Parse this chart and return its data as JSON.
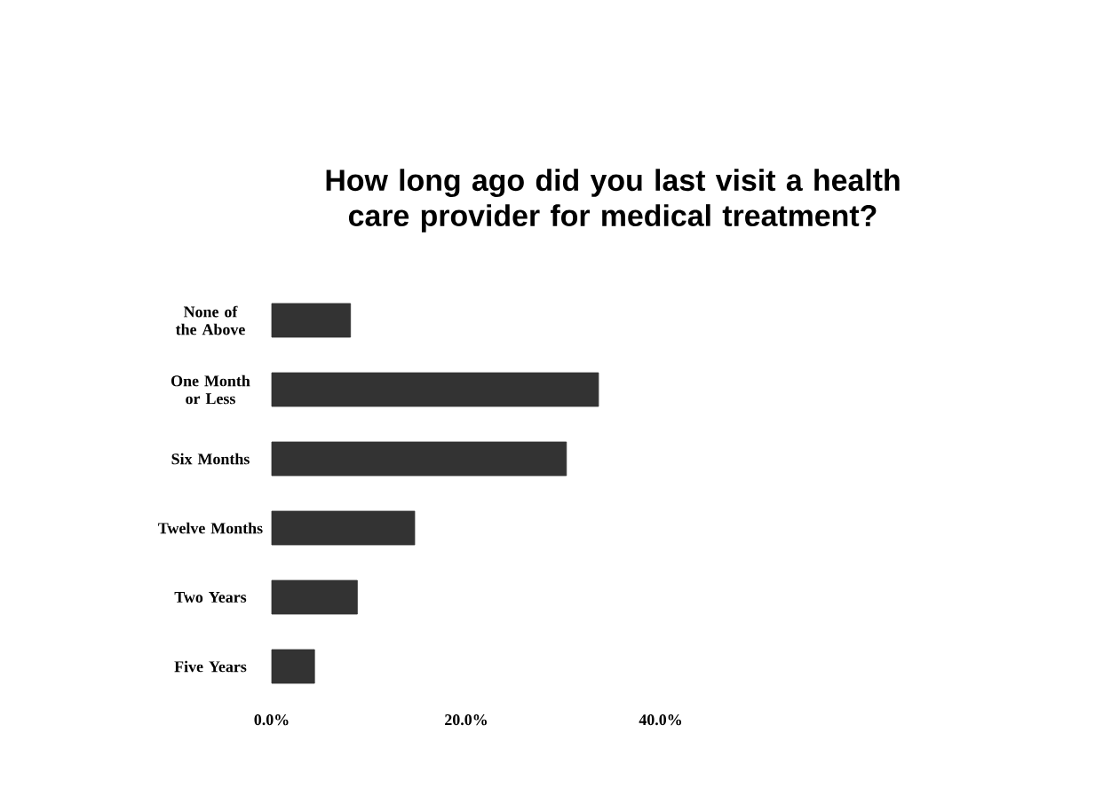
{
  "chart_data": {
    "type": "bar",
    "orientation": "horizontal",
    "title": "How long ago did you last visit a health care provider for medical treatment?",
    "categories": [
      "None of the Above",
      "One Month or Less",
      "Six Months",
      "Twelve Months",
      "Two Years",
      "Five Years"
    ],
    "values": [
      8.1,
      33.6,
      30.3,
      14.7,
      8.8,
      4.4
    ],
    "color": "#333333",
    "xlim": [
      0,
      40
    ],
    "xticks": [
      {
        "value": 0,
        "label": "0.0%"
      },
      {
        "value": 20,
        "label": "20.0%"
      },
      {
        "value": 40,
        "label": "40.0%"
      }
    ]
  }
}
